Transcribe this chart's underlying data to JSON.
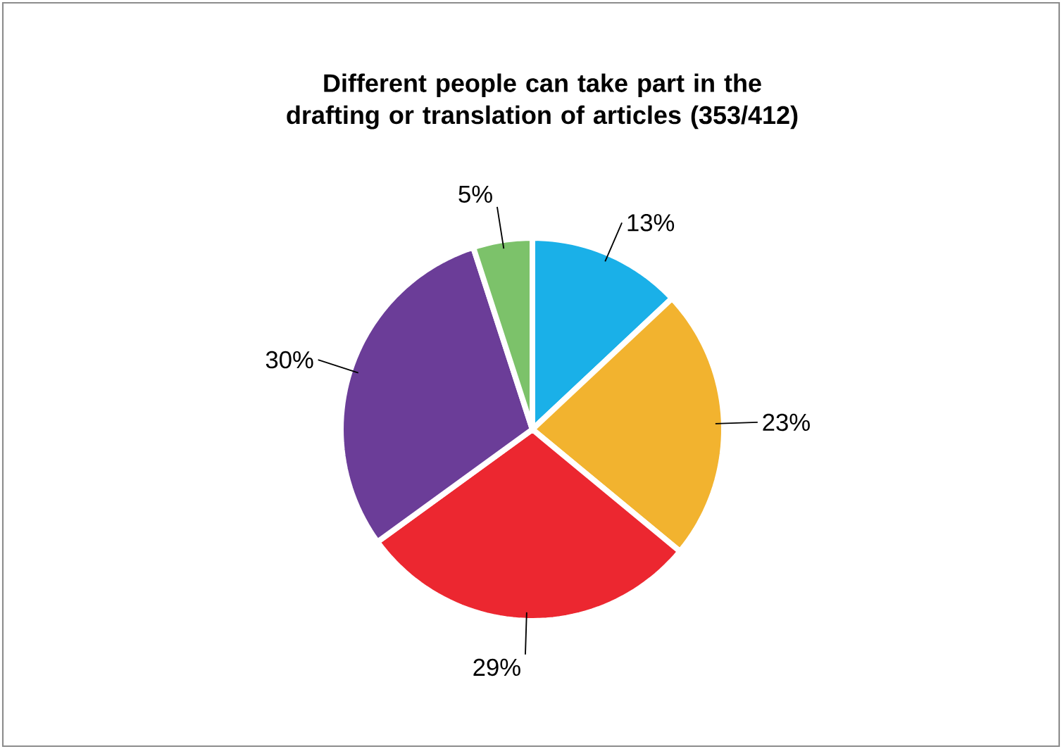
{
  "chart_data": {
    "type": "pie",
    "title": "Different people can take part in the drafting or translation of articles (353/412)",
    "categories": [
      null,
      null,
      null,
      null,
      null
    ],
    "values": [
      13,
      23,
      29,
      30,
      5
    ],
    "colors": [
      "#1ab0e8",
      "#f2b32f",
      "#ec2730",
      "#6b3d98",
      "#7cc26a"
    ],
    "value_labels": [
      "13%",
      "23%",
      "29%",
      "30%",
      "5%"
    ],
    "legend": false
  }
}
